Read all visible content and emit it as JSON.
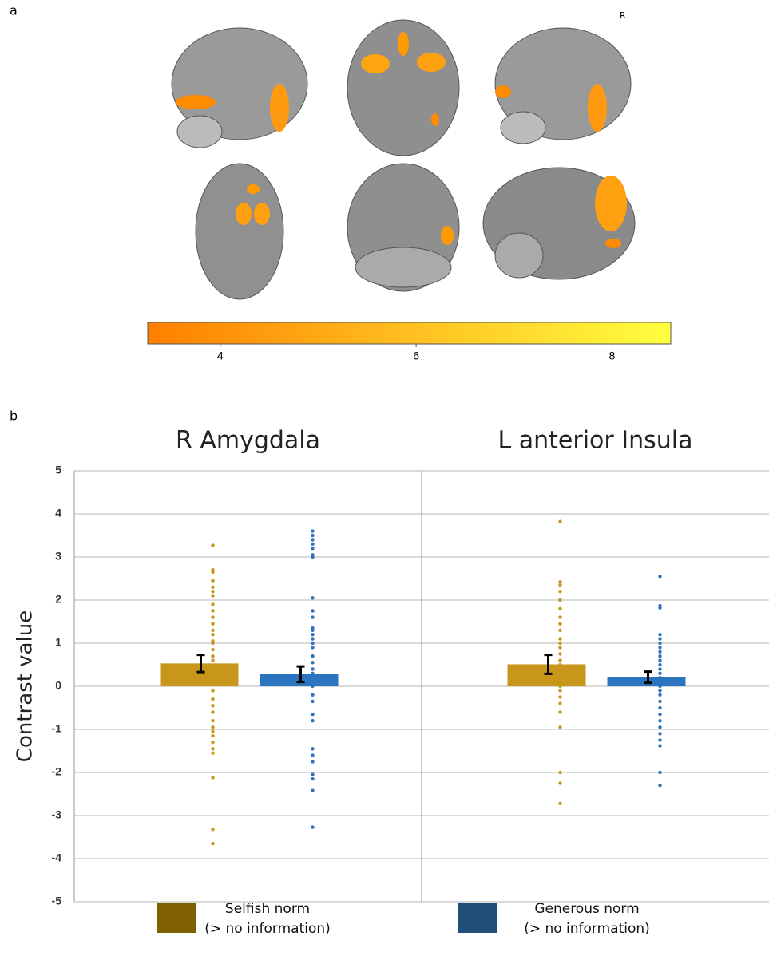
{
  "panel_labels": [
    "a",
    "b"
  ],
  "orientation_label": "R",
  "colorbar": {
    "lim": [
      3.26,
      8.6
    ],
    "ticks": [
      4,
      6,
      8
    ],
    "colors": [
      "#ff7f00",
      "#ffff40"
    ]
  },
  "chart_data": {
    "type": "bar",
    "y_label": "Contrast value",
    "categories": [
      "R Amygdala",
      "L anterior Insula"
    ],
    "ylim": [
      -5,
      5
    ],
    "yticks": [
      -5,
      -4,
      -3,
      -2,
      -1,
      0,
      1,
      2,
      3,
      4,
      5
    ],
    "grid": true,
    "series": [
      {
        "name": "Selfish norm\n(> no information)",
        "color": "#c8961a",
        "legend_color": "#7f6000",
        "values": [
          0.53,
          0.51
        ],
        "errors": [
          0.2,
          0.22
        ],
        "points": [
          [
            3.27,
            2.7,
            2.65,
            2.45,
            2.3,
            2.2,
            2.1,
            1.9,
            1.75,
            1.6,
            1.45,
            1.3,
            1.2,
            1.05,
            1.0,
            0.85,
            0.7,
            0.6,
            0.45,
            0.3,
            0.2,
            0.1,
            -0.1,
            -0.3,
            -0.45,
            -0.6,
            -0.8,
            -0.95,
            -1.05,
            -1.15,
            -1.3,
            -1.45,
            -1.55,
            -2.12,
            -3.32,
            -3.65
          ],
          [
            3.82,
            2.42,
            2.35,
            2.2,
            2.0,
            1.8,
            1.6,
            1.45,
            1.3,
            1.1,
            1.0,
            0.9,
            0.75,
            0.6,
            0.5,
            0.4,
            0.3,
            0.2,
            0.1,
            0.0,
            -0.1,
            -0.25,
            -0.4,
            -0.6,
            -0.95,
            -2.0,
            -2.25,
            -2.72
          ]
        ]
      },
      {
        "name": "Generous norm\n(> no information)",
        "color": "#2b74c0",
        "legend_color": "#1f4e79",
        "values": [
          0.28,
          0.21
        ],
        "errors": [
          0.18,
          0.13
        ],
        "points": [
          [
            3.6,
            3.5,
            3.4,
            3.3,
            3.2,
            3.05,
            3.0,
            2.05,
            1.75,
            1.6,
            1.35,
            1.3,
            1.2,
            1.1,
            1.0,
            0.9,
            0.7,
            0.55,
            0.4,
            0.3,
            0.2,
            0.1,
            0.0,
            -0.2,
            -0.35,
            -0.65,
            -0.8,
            -1.45,
            -1.6,
            -1.75,
            -2.05,
            -2.15,
            -2.42,
            -3.27
          ],
          [
            2.55,
            1.87,
            1.82,
            1.2,
            1.1,
            1.0,
            0.9,
            0.8,
            0.7,
            0.6,
            0.5,
            0.4,
            0.3,
            0.2,
            0.1,
            0.0,
            -0.1,
            -0.2,
            -0.35,
            -0.5,
            -0.65,
            -0.8,
            -0.95,
            -1.1,
            -1.25,
            -1.38,
            -2.0,
            -2.3
          ]
        ]
      }
    ]
  }
}
